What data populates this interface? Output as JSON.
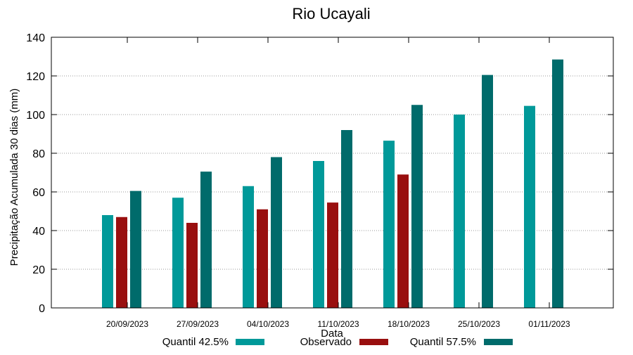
{
  "chart_data": {
    "type": "bar",
    "title": "Rio Ucayali",
    "xlabel": "Data",
    "ylabel": "Precipitação Acumulada 30 dias (mm)",
    "ylim": [
      0,
      140
    ],
    "yticks": [
      0,
      20,
      40,
      60,
      80,
      100,
      120,
      140
    ],
    "grid": true,
    "legend_position": "bottom",
    "categories": [
      "20/09/2023",
      "27/09/2023",
      "04/10/2023",
      "11/10/2023",
      "18/10/2023",
      "25/10/2023",
      "01/11/2023"
    ],
    "series": [
      {
        "name": "Quantil 42.5%",
        "color": "#009999",
        "values": [
          48,
          57,
          63,
          76,
          86.5,
          100,
          104.5
        ]
      },
      {
        "name": "Observado",
        "color": "#990f0f",
        "values": [
          47,
          44,
          51,
          54.5,
          69,
          null,
          null
        ]
      },
      {
        "name": "Quantil 57.5%",
        "color": "#006b6b",
        "values": [
          60.5,
          70.5,
          78,
          92,
          105,
          120.5,
          128.5
        ]
      }
    ]
  }
}
